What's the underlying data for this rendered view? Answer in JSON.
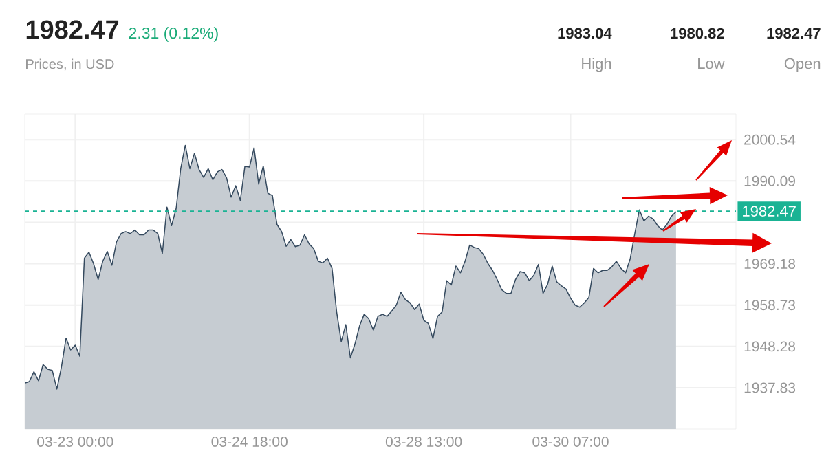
{
  "chart_data": {
    "type": "area",
    "title": "1982.47",
    "subtitle": "Prices, in USD",
    "annotations": [
      "2.31 (0.12%)",
      "1983.04",
      "High",
      "1980.82",
      "Low",
      "1982.47",
      "Open"
    ],
    "color": "#34495e",
    "categories": [
      null,
      null,
      null,
      null,
      null,
      null,
      null,
      null,
      null,
      null,
      null,
      "03-23 00:00",
      null,
      null,
      null,
      null,
      null,
      null,
      null,
      null,
      null,
      null,
      null,
      null,
      null,
      null,
      null,
      null,
      null,
      null,
      null,
      null,
      null,
      null,
      null,
      null,
      null,
      null,
      null,
      null,
      null,
      null,
      null,
      null,
      null,
      null,
      null,
      null,
      null,
      "03-24 18:00",
      null,
      null,
      null,
      null,
      null,
      null,
      null,
      null,
      null,
      null,
      null,
      null,
      null,
      null,
      null,
      null,
      null,
      null,
      null,
      null,
      null,
      null,
      null,
      null,
      null,
      null,
      null,
      null,
      null,
      null,
      null,
      null,
      null,
      null,
      null,
      null,
      null,
      "03-28 13:00",
      null,
      null,
      null,
      null,
      null,
      null,
      null,
      null,
      null,
      null,
      null,
      null,
      null,
      null,
      null,
      null,
      null,
      null,
      null,
      null,
      null,
      null,
      null,
      null,
      null,
      null,
      null,
      null,
      null,
      null,
      null,
      "03-30 07:00",
      null,
      null,
      null,
      null,
      null,
      null,
      null,
      null,
      null,
      null,
      null,
      null,
      null,
      null,
      null,
      null,
      null,
      null,
      null,
      null,
      null,
      null,
      null
    ],
    "values": [
      1939.0,
      1939.4,
      1941.9,
      1939.6,
      1943.7,
      1942.5,
      1942.2,
      1937.5,
      1943.1,
      1950.4,
      1947.4,
      1948.6,
      1945.8,
      1970.6,
      1972.1,
      1969.2,
      1965.2,
      1969.8,
      1972.3,
      1968.8,
      1974.7,
      1976.8,
      1977.3,
      1976.8,
      1977.7,
      1976.5,
      1976.5,
      1977.7,
      1977.7,
      1976.8,
      1971.8,
      1983.5,
      1978.8,
      1983.1,
      1993.2,
      1999.1,
      1993.2,
      1997.1,
      1993.0,
      1991.0,
      1993.2,
      1990.4,
      1992.4,
      1993.0,
      1990.9,
      1986.0,
      1988.9,
      1985.2,
      1993.8,
      1993.6,
      1998.5,
      1989.3,
      1993.9,
      1987.0,
      1986.4,
      1979.1,
      1977.3,
      1973.6,
      1975.3,
      1973.5,
      1973.9,
      1976.5,
      1974.2,
      1973.0,
      1969.8,
      1969.4,
      1970.6,
      1968.0,
      1957.0,
      1949.5,
      1953.8,
      1945.4,
      1948.9,
      1953.5,
      1956.4,
      1955.3,
      1952.4,
      1955.9,
      1956.4,
      1955.9,
      1957.2,
      1958.7,
      1962.0,
      1960.1,
      1959.3,
      1957.6,
      1959.0,
      1954.9,
      1954.1,
      1950.3,
      1955.9,
      1957.0,
      1964.9,
      1963.8,
      1968.6,
      1966.9,
      1969.8,
      1973.9,
      1973.3,
      1973.0,
      1971.5,
      1969.2,
      1967.5,
      1965.2,
      1962.6,
      1961.7,
      1961.7,
      1965.2,
      1967.2,
      1966.9,
      1964.9,
      1966.3,
      1969.0,
      1961.7,
      1964.0,
      1968.6,
      1964.6,
      1963.6,
      1962.8,
      1960.5,
      1958.7,
      1958.2,
      1959.3,
      1960.7,
      1968.0,
      1966.9,
      1967.5,
      1967.5,
      1968.4,
      1969.8,
      1968.0,
      1966.9,
      1970.4,
      1976.8,
      1982.8,
      1980.0,
      1981.2,
      1980.5,
      1978.8,
      1977.7,
      1979.1,
      1981.2,
      1982.3
    ],
    "ylim": [
      1927.4,
      2007.0
    ],
    "yticks": [
      1937.83,
      1948.28,
      1958.73,
      1969.18,
      {
        "value": 1979.64,
        "label": null
      },
      1990.09,
      2000.54
    ],
    "ref_lines": [
      {
        "axis": "y",
        "value": 1982.47,
        "label": "1982.47",
        "color": "#1ab394",
        "line_style": "dashed"
      }
    ],
    "grid": true
  }
}
